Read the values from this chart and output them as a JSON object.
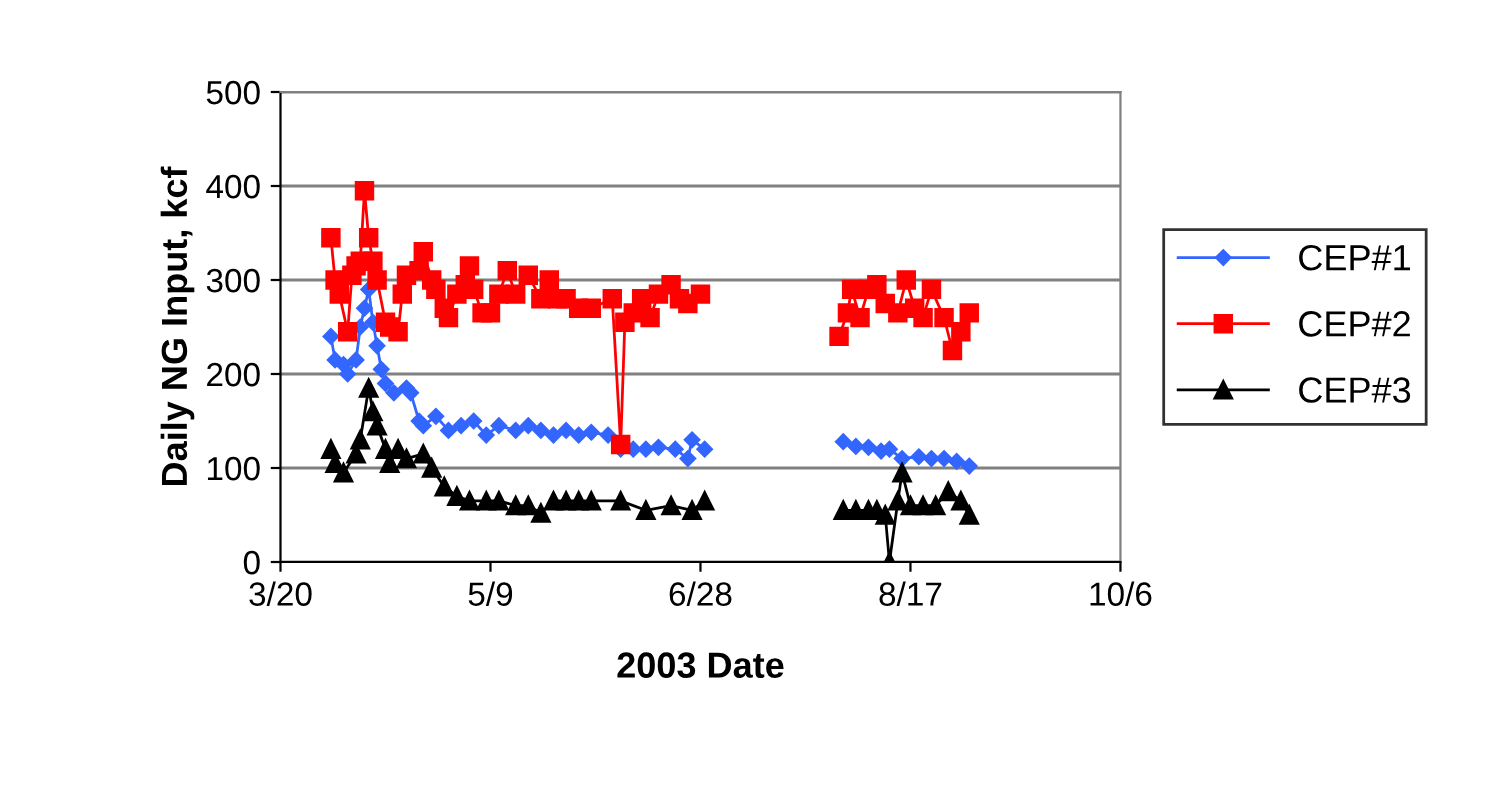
{
  "chart_data": {
    "type": "line",
    "xlabel": "2003 Date",
    "ylabel": "Daily NG Input, kcf",
    "xlim": [
      "2003-03-20",
      "2003-10-06"
    ],
    "xticks": [
      {
        "value": "2003-03-20",
        "label": "3/20"
      },
      {
        "value": "2003-05-09",
        "label": "5/9"
      },
      {
        "value": "2003-06-28",
        "label": "6/28"
      },
      {
        "value": "2003-08-17",
        "label": "8/17"
      },
      {
        "value": "2003-10-06",
        "label": "10/6"
      }
    ],
    "ylim": [
      0,
      500
    ],
    "yticks": [
      0,
      100,
      200,
      300,
      400,
      500
    ],
    "grid": "y",
    "legend": "right",
    "line_style": "solid",
    "series": [
      {
        "name": "CEP#1",
        "color": "#3366ff",
        "marker": "diamond",
        "x": [
          "2003-04-01",
          "2003-04-02",
          "2003-04-04",
          "2003-04-05",
          "2003-04-07",
          "2003-04-08",
          "2003-04-09",
          "2003-04-10",
          "2003-04-11",
          "2003-04-12",
          "2003-04-13",
          "2003-04-14",
          "2003-04-16",
          "2003-04-19",
          "2003-04-20",
          "2003-04-22",
          "2003-04-23",
          "2003-04-26",
          "2003-04-29",
          "2003-05-02",
          "2003-05-05",
          "2003-05-08",
          "2003-05-11",
          "2003-05-15",
          "2003-05-18",
          "2003-05-21",
          "2003-05-24",
          "2003-05-27",
          "2003-05-30",
          "2003-06-02",
          "2003-06-06",
          "2003-06-09",
          "2003-06-12",
          "2003-06-15",
          "2003-06-18",
          "2003-06-22",
          "2003-06-25",
          "2003-06-26",
          "2003-06-29",
          "2003-07-13",
          "2003-08-01",
          "2003-08-04",
          "2003-08-07",
          "2003-08-10",
          "2003-08-12",
          "2003-08-15",
          "2003-08-19",
          "2003-08-22",
          "2003-08-25",
          "2003-08-28",
          "2003-08-31"
        ],
        "values": [
          240,
          215,
          210,
          200,
          215,
          250,
          270,
          290,
          255,
          230,
          205,
          190,
          180,
          185,
          180,
          150,
          145,
          155,
          140,
          145,
          150,
          135,
          145,
          140,
          145,
          140,
          135,
          140,
          135,
          138,
          135,
          120,
          120,
          120,
          122,
          120,
          110,
          130,
          120,
          null,
          128,
          123,
          122,
          118,
          120,
          110,
          112,
          110,
          110,
          107,
          102
        ]
      },
      {
        "name": "CEP#2",
        "color": "#ff0000",
        "marker": "square",
        "x": [
          "2003-04-01",
          "2003-04-02",
          "2003-04-03",
          "2003-04-05",
          "2003-04-06",
          "2003-04-07",
          "2003-04-08",
          "2003-04-09",
          "2003-04-10",
          "2003-04-11",
          "2003-04-12",
          "2003-04-14",
          "2003-04-15",
          "2003-04-17",
          "2003-04-18",
          "2003-04-19",
          "2003-04-22",
          "2003-04-23",
          "2003-04-25",
          "2003-04-26",
          "2003-04-28",
          "2003-04-29",
          "2003-05-01",
          "2003-05-03",
          "2003-05-04",
          "2003-05-05",
          "2003-05-07",
          "2003-05-09",
          "2003-05-11",
          "2003-05-13",
          "2003-05-15",
          "2003-05-18",
          "2003-05-21",
          "2003-05-23",
          "2003-05-25",
          "2003-05-27",
          "2003-05-30",
          "2003-06-02",
          "2003-06-07",
          "2003-06-09",
          "2003-06-10",
          "2003-06-12",
          "2003-06-14",
          "2003-06-16",
          "2003-06-18",
          "2003-06-21",
          "2003-06-23",
          "2003-06-25",
          "2003-06-28",
          "2003-07-13",
          "2003-07-31",
          "2003-08-02",
          "2003-08-03",
          "2003-08-05",
          "2003-08-07",
          "2003-08-09",
          "2003-08-11",
          "2003-08-14",
          "2003-08-16",
          "2003-08-18",
          "2003-08-20",
          "2003-08-22",
          "2003-08-25",
          "2003-08-27",
          "2003-08-29",
          "2003-08-31"
        ],
        "values": [
          345,
          300,
          285,
          245,
          305,
          315,
          320,
          395,
          345,
          320,
          300,
          255,
          250,
          245,
          285,
          305,
          310,
          330,
          300,
          290,
          270,
          260,
          285,
          295,
          315,
          290,
          265,
          265,
          285,
          310,
          285,
          305,
          280,
          300,
          280,
          280,
          270,
          270,
          280,
          125,
          255,
          265,
          280,
          260,
          285,
          295,
          280,
          275,
          285,
          null,
          240,
          265,
          290,
          260,
          290,
          295,
          275,
          265,
          300,
          270,
          260,
          290,
          260,
          225,
          245,
          265
        ]
      },
      {
        "name": "CEP#3",
        "color": "#000000",
        "marker": "triangle",
        "x": [
          "2003-04-01",
          "2003-04-02",
          "2003-04-04",
          "2003-04-07",
          "2003-04-08",
          "2003-04-10",
          "2003-04-11",
          "2003-04-12",
          "2003-04-14",
          "2003-04-15",
          "2003-04-17",
          "2003-04-19",
          "2003-04-23",
          "2003-04-25",
          "2003-04-28",
          "2003-05-01",
          "2003-05-04",
          "2003-05-08",
          "2003-05-11",
          "2003-05-15",
          "2003-05-18",
          "2003-05-21",
          "2003-05-24",
          "2003-05-27",
          "2003-05-30",
          "2003-06-02",
          "2003-06-09",
          "2003-06-15",
          "2003-06-21",
          "2003-06-26",
          "2003-06-29",
          "2003-07-13",
          "2003-08-01",
          "2003-08-04",
          "2003-08-07",
          "2003-08-09",
          "2003-08-11",
          "2003-08-12",
          "2003-08-14",
          "2003-08-15",
          "2003-08-17",
          "2003-08-20",
          "2003-08-23",
          "2003-08-26",
          "2003-08-29",
          "2003-08-31"
        ],
        "values": [
          120,
          105,
          95,
          115,
          130,
          185,
          160,
          145,
          120,
          105,
          120,
          110,
          115,
          100,
          80,
          70,
          65,
          65,
          65,
          60,
          60,
          52,
          65,
          65,
          65,
          65,
          65,
          55,
          60,
          55,
          65,
          null,
          55,
          55,
          55,
          55,
          50,
          0,
          65,
          95,
          60,
          60,
          60,
          75,
          65,
          50
        ]
      }
    ]
  }
}
